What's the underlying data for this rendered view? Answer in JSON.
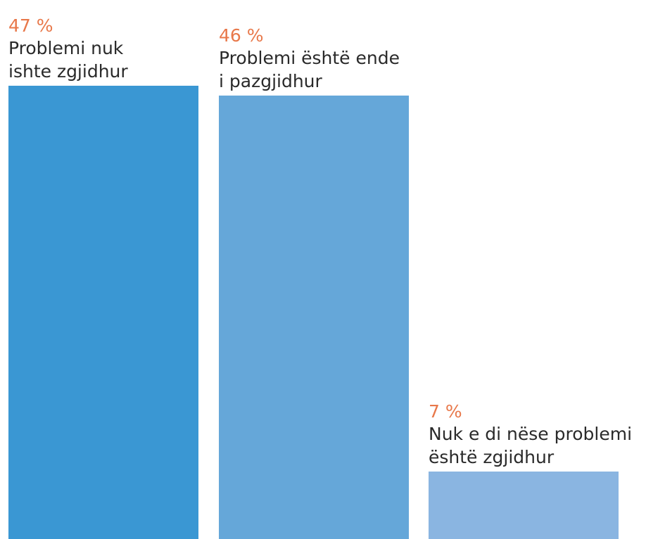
{
  "chart_data": {
    "type": "bar",
    "categories": [
      [
        "Problemi nuk",
        "ishte zgjidhur"
      ],
      [
        "Problemi është ende",
        "i pazgjidhur"
      ],
      [
        "Nuk e di nëse problemi",
        "është zgjidhur"
      ]
    ],
    "values": [
      47,
      46,
      7
    ],
    "value_labels": [
      "47 %",
      "46 %",
      "7 %"
    ],
    "ylim": [
      0,
      47
    ],
    "grid": false,
    "colors": [
      "#3a97d3",
      "#65a7d9",
      "#8ab5e1"
    ],
    "label_color": "#e8784a",
    "text_color": "#2a2a2a"
  }
}
